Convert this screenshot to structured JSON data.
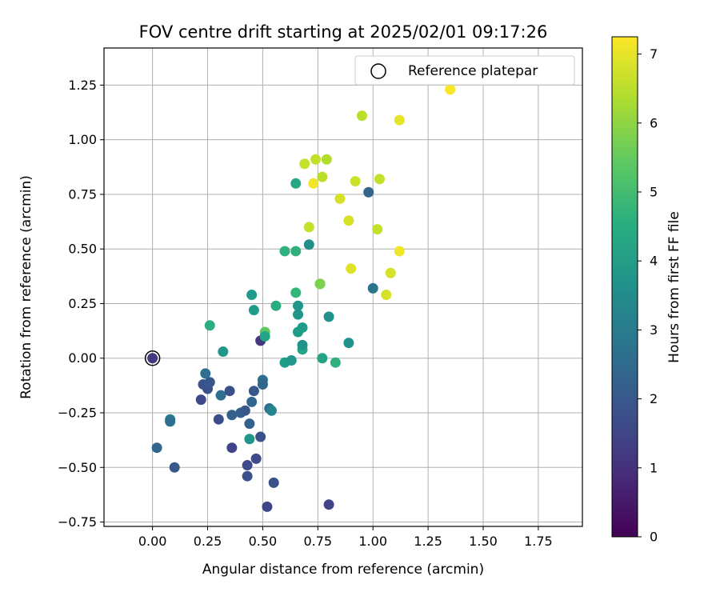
{
  "chart_data": {
    "type": "scatter",
    "title": "FOV centre drift starting at 2025/02/01 09:17:26",
    "xlabel": "Angular distance from reference (arcmin)",
    "ylabel": "Rotation from reference (arcmin)",
    "xlim": [
      -0.22,
      1.95
    ],
    "ylim": [
      -0.77,
      1.42
    ],
    "x_ticks": [
      "0.00",
      "0.25",
      "0.50",
      "0.75",
      "1.00",
      "1.25",
      "1.50",
      "1.75"
    ],
    "y_ticks": [
      "−0.75",
      "−0.50",
      "−0.25",
      "0.00",
      "0.25",
      "0.50",
      "0.75",
      "1.00",
      "1.25"
    ],
    "grid": true,
    "legend": {
      "placement": "top-right",
      "entries": [
        "Reference platepar"
      ]
    },
    "reference_point": {
      "x": 0.0,
      "y": 0.0
    },
    "colorbar": {
      "label": "Hours from first FF file",
      "colormap": "viridis",
      "range": [
        0,
        7.25
      ],
      "ticks": [
        "0",
        "1",
        "2",
        "3",
        "4",
        "5",
        "6",
        "7"
      ]
    },
    "points": [
      {
        "x": 0.0,
        "y": 0.0,
        "c": 1.2
      },
      {
        "x": 0.02,
        "y": -0.41,
        "c": 2.4
      },
      {
        "x": 0.08,
        "y": -0.28,
        "c": 3.0
      },
      {
        "x": 0.08,
        "y": -0.29,
        "c": 2.6
      },
      {
        "x": 0.1,
        "y": -0.5,
        "c": 2.0
      },
      {
        "x": 0.22,
        "y": -0.19,
        "c": 1.6
      },
      {
        "x": 0.23,
        "y": -0.12,
        "c": 1.8
      },
      {
        "x": 0.24,
        "y": -0.07,
        "c": 2.6
      },
      {
        "x": 0.25,
        "y": -0.14,
        "c": 1.8
      },
      {
        "x": 0.26,
        "y": -0.11,
        "c": 2.0
      },
      {
        "x": 0.26,
        "y": 0.15,
        "c": 4.5
      },
      {
        "x": 0.3,
        "y": -0.28,
        "c": 1.7
      },
      {
        "x": 0.31,
        "y": -0.17,
        "c": 2.6
      },
      {
        "x": 0.32,
        "y": 0.03,
        "c": 3.8
      },
      {
        "x": 0.35,
        "y": -0.15,
        "c": 1.8
      },
      {
        "x": 0.36,
        "y": -0.26,
        "c": 2.2
      },
      {
        "x": 0.36,
        "y": -0.41,
        "c": 1.5
      },
      {
        "x": 0.4,
        "y": -0.25,
        "c": 2.2
      },
      {
        "x": 0.42,
        "y": -0.24,
        "c": 2.0
      },
      {
        "x": 0.43,
        "y": -0.49,
        "c": 1.6
      },
      {
        "x": 0.43,
        "y": -0.54,
        "c": 1.8
      },
      {
        "x": 0.44,
        "y": -0.3,
        "c": 2.2
      },
      {
        "x": 0.44,
        "y": -0.37,
        "c": 3.8
      },
      {
        "x": 0.45,
        "y": 0.29,
        "c": 3.9
      },
      {
        "x": 0.45,
        "y": -0.2,
        "c": 2.4
      },
      {
        "x": 0.46,
        "y": 0.22,
        "c": 4.0
      },
      {
        "x": 0.46,
        "y": -0.15,
        "c": 2.0
      },
      {
        "x": 0.47,
        "y": -0.46,
        "c": 1.6
      },
      {
        "x": 0.49,
        "y": -0.36,
        "c": 1.8
      },
      {
        "x": 0.49,
        "y": 0.08,
        "c": 1.2
      },
      {
        "x": 0.5,
        "y": -0.1,
        "c": 2.6
      },
      {
        "x": 0.5,
        "y": -0.12,
        "c": 2.4
      },
      {
        "x": 0.51,
        "y": 0.12,
        "c": 5.4
      },
      {
        "x": 0.51,
        "y": 0.1,
        "c": 4.2
      },
      {
        "x": 0.52,
        "y": -0.68,
        "c": 1.5
      },
      {
        "x": 0.53,
        "y": -0.23,
        "c": 2.6
      },
      {
        "x": 0.54,
        "y": -0.24,
        "c": 3.3
      },
      {
        "x": 0.55,
        "y": -0.57,
        "c": 1.8
      },
      {
        "x": 0.56,
        "y": 0.24,
        "c": 4.5
      },
      {
        "x": 0.6,
        "y": 0.49,
        "c": 4.6
      },
      {
        "x": 0.6,
        "y": -0.02,
        "c": 4.0
      },
      {
        "x": 0.63,
        "y": -0.01,
        "c": 3.8
      },
      {
        "x": 0.65,
        "y": 0.8,
        "c": 4.3
      },
      {
        "x": 0.65,
        "y": 0.49,
        "c": 4.6
      },
      {
        "x": 0.65,
        "y": 0.3,
        "c": 4.8
      },
      {
        "x": 0.66,
        "y": 0.24,
        "c": 3.8
      },
      {
        "x": 0.66,
        "y": 0.2,
        "c": 3.8
      },
      {
        "x": 0.66,
        "y": 0.12,
        "c": 4.0
      },
      {
        "x": 0.68,
        "y": 0.14,
        "c": 4.0
      },
      {
        "x": 0.68,
        "y": 0.04,
        "c": 4.2
      },
      {
        "x": 0.68,
        "y": 0.06,
        "c": 3.7
      },
      {
        "x": 0.69,
        "y": 0.89,
        "c": 6.6
      },
      {
        "x": 0.71,
        "y": 0.52,
        "c": 3.6
      },
      {
        "x": 0.71,
        "y": 0.6,
        "c": 6.6
      },
      {
        "x": 0.73,
        "y": 0.8,
        "c": 7.1
      },
      {
        "x": 0.74,
        "y": 0.91,
        "c": 6.6
      },
      {
        "x": 0.76,
        "y": 0.34,
        "c": 5.6
      },
      {
        "x": 0.76,
        "y": 0.34,
        "c": 5.8
      },
      {
        "x": 0.77,
        "y": 0.83,
        "c": 6.5
      },
      {
        "x": 0.77,
        "y": 0.0,
        "c": 4.2
      },
      {
        "x": 0.79,
        "y": 0.91,
        "c": 6.4
      },
      {
        "x": 0.8,
        "y": 0.19,
        "c": 3.7
      },
      {
        "x": 0.8,
        "y": -0.67,
        "c": 1.5
      },
      {
        "x": 0.83,
        "y": -0.02,
        "c": 4.6
      },
      {
        "x": 0.85,
        "y": 0.73,
        "c": 6.8
      },
      {
        "x": 0.89,
        "y": 0.63,
        "c": 6.8
      },
      {
        "x": 0.89,
        "y": 0.07,
        "c": 3.7
      },
      {
        "x": 0.9,
        "y": 0.41,
        "c": 6.9
      },
      {
        "x": 0.92,
        "y": 0.81,
        "c": 6.7
      },
      {
        "x": 0.95,
        "y": 1.11,
        "c": 6.5
      },
      {
        "x": 0.98,
        "y": 0.76,
        "c": 2.3
      },
      {
        "x": 1.0,
        "y": 0.32,
        "c": 2.8
      },
      {
        "x": 1.02,
        "y": 0.59,
        "c": 6.6
      },
      {
        "x": 1.03,
        "y": 0.82,
        "c": 6.6
      },
      {
        "x": 1.06,
        "y": 0.29,
        "c": 6.8
      },
      {
        "x": 1.08,
        "y": 0.39,
        "c": 6.8
      },
      {
        "x": 1.12,
        "y": 1.09,
        "c": 7.0
      },
      {
        "x": 1.12,
        "y": 0.49,
        "c": 7.1
      },
      {
        "x": 1.35,
        "y": 1.23,
        "c": 7.2
      }
    ]
  }
}
